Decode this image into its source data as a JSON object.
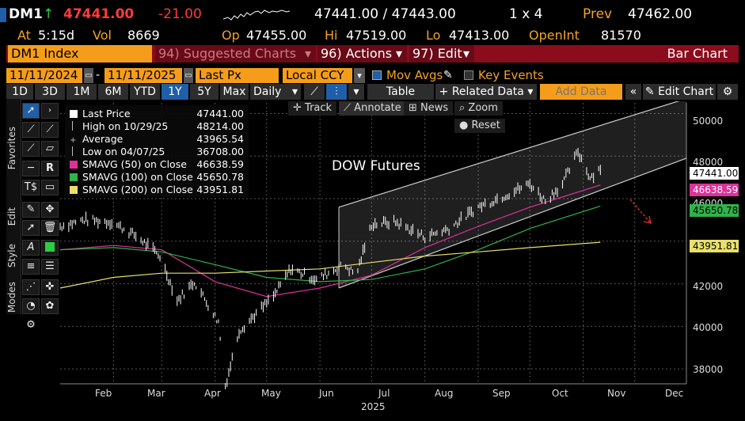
{
  "quote": {
    "ticker": "DM1",
    "arrow": "↑",
    "last": "47441.00",
    "change": "-21.00",
    "bid_ask": "47441.00 / 47443.00",
    "size": "1 x 4",
    "prev_label": "Prev",
    "prev": "47462.00",
    "time_label": "At",
    "time": "5:15d",
    "vol_label": "Vol",
    "vol": "8669",
    "open_label": "Op",
    "open": "47455.00",
    "high_label": "Hi",
    "high": "47519.00",
    "low_label": "Lo",
    "low": "47413.00",
    "oi_label": "OpenInt",
    "oi": "81570"
  },
  "menubar": {
    "security": "DM1 Index",
    "suggested": "94) Suggested Charts",
    "actions": "96) Actions",
    "edit": "97) Edit",
    "chart_type": "Bar Chart"
  },
  "controls": {
    "start_date": "11/11/2024",
    "end_date": "11/11/2025",
    "field": "Last Px",
    "currency": "Local CCY",
    "mov_avgs": "Mov Avgs",
    "key_events": "Key Events",
    "add_data_placeholder": "Add Data",
    "periods": [
      "1D",
      "3D",
      "1M",
      "6M",
      "YTD",
      "1Y",
      "5Y",
      "Max"
    ],
    "selected_period": "1Y",
    "frequency": "Daily",
    "table": "Table",
    "related_data": "Related Data",
    "edit_chart": "Edit Chart",
    "track": "Track",
    "annotate": "Annotate",
    "news": "News",
    "zoom": "Zoom",
    "reset": "Reset"
  },
  "sidebar": {
    "favorites": "Favorites",
    "edit": "Edit",
    "style": "Style",
    "modes": "Modes"
  },
  "legend": {
    "last_price_label": "Last Price",
    "last_price": "47441.00",
    "high_label": "High on 10/29/25",
    "high": "48214.00",
    "average_label": "Average",
    "average": "43965.54",
    "low_label": "Low on 04/07/25",
    "low": "36708.00",
    "sma50_label": "SMAVG (50)  on Close",
    "sma50": "46638.59",
    "sma100_label": "SMAVG (100)  on Close",
    "sma100": "45650.78",
    "sma200_label": "SMAVG (200)  on Close",
    "sma200": "43951.81"
  },
  "chart_data": {
    "type": "line",
    "title": "DOW Futures",
    "year_label": "2025",
    "x_tick_labels": [
      "Feb",
      "Mar",
      "Apr",
      "May",
      "Jun",
      "Jul",
      "Aug",
      "Sep",
      "Oct",
      "Nov",
      "Dec"
    ],
    "y_tick_labels": [
      "38000",
      "40000",
      "42000",
      "44000",
      "46000",
      "48000",
      "50000"
    ],
    "ylim": [
      37300,
      50500
    ],
    "price_labels": {
      "last": "47441.00",
      "sma50": "46638.59",
      "sma100": "45650.78",
      "sma200": "43951.81"
    },
    "colors": {
      "price": "#ffffff",
      "sma50": "#e0309a",
      "sma100": "#2fb34a",
      "sma200": "#e8e06a",
      "channel": "#cfcfcf",
      "arrow": "#e0312f"
    },
    "series": [
      {
        "name": "Last Price",
        "x": [
          "2025-01-01",
          "2025-01-15",
          "2025-01-31",
          "2025-02-15",
          "2025-02-28",
          "2025-03-10",
          "2025-03-20",
          "2025-04-03",
          "2025-04-07",
          "2025-04-15",
          "2025-04-25",
          "2025-05-05",
          "2025-05-15",
          "2025-05-30",
          "2025-06-15",
          "2025-06-22",
          "2025-07-01",
          "2025-07-15",
          "2025-08-01",
          "2025-08-15",
          "2025-09-01",
          "2025-09-15",
          "2025-10-01",
          "2025-10-10",
          "2025-10-20",
          "2025-10-29",
          "2025-11-05",
          "2025-11-11"
        ],
        "values": [
          44700,
          45000,
          44900,
          44200,
          43300,
          41200,
          42100,
          40200,
          37200,
          39800,
          40600,
          41400,
          42700,
          42200,
          42900,
          42400,
          44800,
          44900,
          44200,
          44600,
          45600,
          46100,
          46700,
          45900,
          46700,
          48214,
          47000,
          47441
        ]
      },
      {
        "name": "SMAVG (50) on Close",
        "x": [
          "2025-01-01",
          "2025-02-01",
          "2025-03-01",
          "2025-04-01",
          "2025-05-01",
          "2025-06-01",
          "2025-07-01",
          "2025-08-01",
          "2025-09-01",
          "2025-10-01",
          "2025-11-11"
        ],
        "values": [
          43600,
          43800,
          43600,
          42100,
          41400,
          41800,
          42400,
          43700,
          44700,
          45600,
          46638.59
        ]
      },
      {
        "name": "SMAVG (100) on Close",
        "x": [
          "2025-01-01",
          "2025-02-01",
          "2025-03-01",
          "2025-04-01",
          "2025-05-01",
          "2025-06-01",
          "2025-07-01",
          "2025-08-01",
          "2025-09-01",
          "2025-10-01",
          "2025-11-11"
        ],
        "values": [
          43600,
          43700,
          43500,
          42900,
          42300,
          42100,
          42200,
          42700,
          43600,
          44600,
          45650.78
        ]
      },
      {
        "name": "SMAVG (200) on Close",
        "x": [
          "2025-01-01",
          "2025-02-01",
          "2025-03-01",
          "2025-04-01",
          "2025-05-01",
          "2025-06-01",
          "2025-07-01",
          "2025-08-01",
          "2025-09-01",
          "2025-10-01",
          "2025-11-11"
        ],
        "values": [
          41800,
          42300,
          42500,
          42500,
          42600,
          42700,
          43000,
          43300,
          43500,
          43700,
          43951.81
        ]
      }
    ],
    "channel": {
      "upper": {
        "x": [
          "2025-06-12",
          "2025-12-31"
        ],
        "values": [
          45600,
          50700
        ]
      },
      "lower": {
        "x": [
          "2025-06-12",
          "2025-12-31"
        ],
        "values": [
          41800,
          47900
        ]
      }
    },
    "x_domain": [
      "2025-01-01",
      "2025-12-31"
    ]
  }
}
